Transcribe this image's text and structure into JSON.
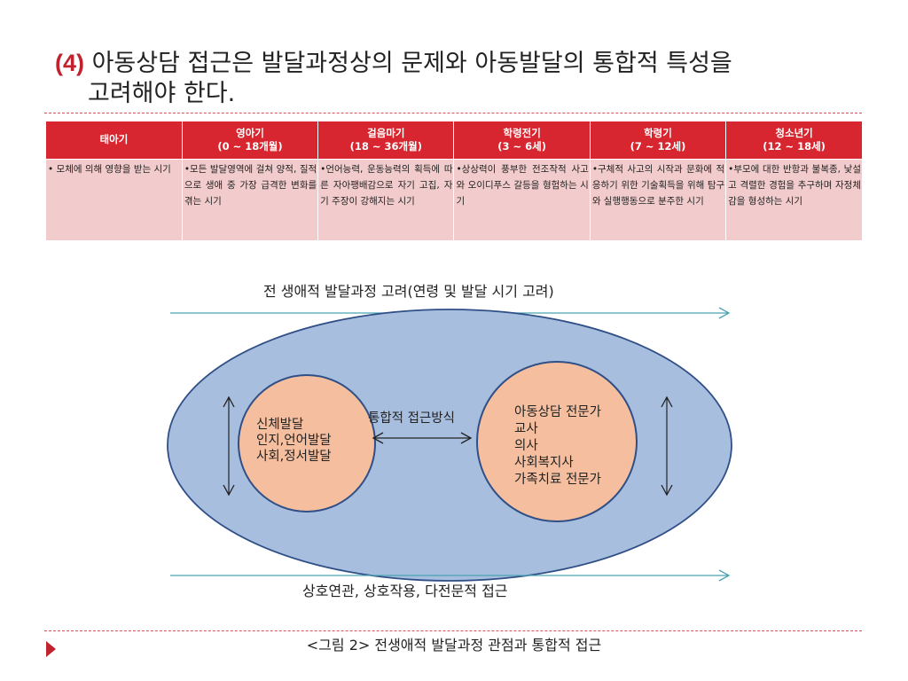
{
  "title": {
    "number": "(4)",
    "line1_rest": " 아동상담 접근은 발달과정상의 문제와 아동발달의 통합적 특성을",
    "line2": "고려해야 한다."
  },
  "table": {
    "headers": [
      {
        "name": "태아기",
        "range": ""
      },
      {
        "name": "영아기",
        "range": "(0 ~ 18개월)"
      },
      {
        "name": "걸음마기",
        "range": "(18 ~ 36개월)"
      },
      {
        "name": "학령전기",
        "range": "(3 ~ 6세)"
      },
      {
        "name": "학령기",
        "range": "(7 ~ 12세)"
      },
      {
        "name": "청소년기",
        "range": "(12 ~ 18세)"
      }
    ],
    "cells": [
      "• 모체에 의해 영향을 받는 시기",
      "•모든 발달영역에 걸쳐 양적, 질적으로 생애 중 가장 급격한 변화를 겪는 시기",
      "•언어능력, 운동능력의 획득에 따른 자아팽배감으로 자기 고집, 자기 주장이 강해지는 시기",
      "•상상력이 풍부한 전조작적 사고와 오이디푸스 갈등을 형험하는 시기",
      "•구체적 사고의 시작과 문화에 적응하기 위한 기술획득을 위해 탐구와 실행행동으로 분주한 시기",
      "•부모에 대한 반항과 불복종, 낯설고 격렬한 경험을 추구하며 자정체감을 형성하는 시기"
    ]
  },
  "diagram": {
    "top_label": "전 생애적 발달과정 고려(연령 및 발달 시기 고려)",
    "bottom_label": "상호연관, 상호작용, 다전문적 접근",
    "center_label": "통합적 접근방식",
    "left_items": [
      "신체발달",
      "인지,언어발달",
      "사회,정서발달"
    ],
    "right_items": [
      "아동상담 전문가",
      "교사",
      "의사",
      "사회복지사",
      "가족치료 전문가"
    ]
  },
  "caption": "<그림 2> 전생애적 발달과정 관점과 통합적 접근",
  "colors": {
    "accent_red": "#d7262f",
    "cell_pink": "#f2cccd",
    "ellipse_blue": "#a7bedf",
    "ellipse_stroke": "#2f4f86",
    "circle_peach": "#f5bf9f",
    "arrow_teal": "#4aa3b5"
  }
}
